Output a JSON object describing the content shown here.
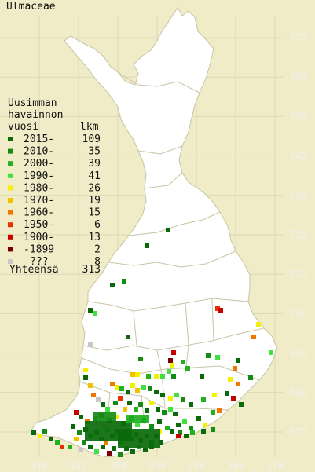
{
  "title": "Ulmaceae",
  "legend": {
    "heading_lines": [
      "Uusimman",
      "havainnon"
    ],
    "col_year": "vuosi",
    "col_count": "lkm",
    "rows": [
      {
        "label": "2015-",
        "count": "109",
        "color": "#0a6a0a"
      },
      {
        "label": "2010-",
        "count": "35",
        "color": "#148c14"
      },
      {
        "label": "2000-",
        "count": "39",
        "color": "#20b020"
      },
      {
        "label": "1990-",
        "count": "41",
        "color": "#40e040"
      },
      {
        "label": "1980-",
        "count": "26",
        "color": "#f2f200"
      },
      {
        "label": "1970-",
        "count": "19",
        "color": "#f2c000"
      },
      {
        "label": "1960-",
        "count": "15",
        "color": "#f07800"
      },
      {
        "label": "1950-",
        "count": "6",
        "color": "#e83000"
      },
      {
        "label": "1900-",
        "count": "13",
        "color": "#c80000"
      },
      {
        "label": "-1899",
        "count": "2",
        "color": "#780000"
      },
      {
        "label": "???",
        "count": "8",
        "color": "#c8c8c8"
      }
    ],
    "total_label": "Yhteensä",
    "total_count": "313"
  },
  "y_ticks": [
    "770",
    "760",
    "750",
    "740",
    "730",
    "720",
    "710",
    "700",
    "690",
    "680",
    "670"
  ],
  "x_ticks": [
    "310",
    "320",
    "330",
    "340",
    "350",
    "360",
    "370"
  ],
  "colors": {
    "background": "#f0ecc8",
    "land": "#ffffff",
    "border": "#c8c4a4",
    "grid": "#dcd8b4"
  }
}
